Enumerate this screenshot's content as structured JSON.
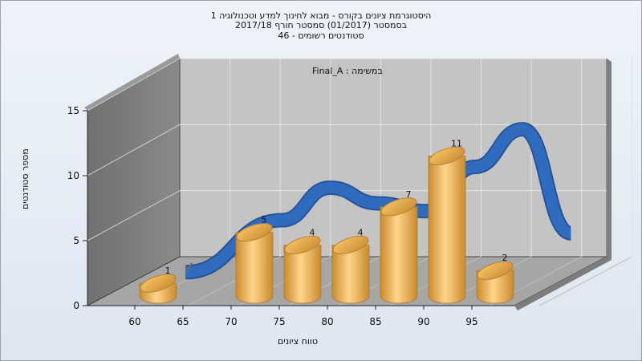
{
  "title": {
    "line1": "היסטוגרמת ציונים בקורס - מבוא לחינוך למדע וטכנולוגיה 1",
    "line2": "בסמסטר  (01/2017)  סמסטר חורף 2017/18",
    "line3": "סטודנטים רשומים - 46"
  },
  "annotation": "במשימה : Final_A",
  "colors": {
    "bar": "#f2b85a",
    "bar_dark": "#c98a2e",
    "curve": "#2f6bbf",
    "back_wall": "#c4c4c4",
    "side_wall": "#8a8a8a",
    "floor": "#a6a6a6"
  },
  "chart_data": {
    "type": "bar",
    "categories": [
      "60",
      "65",
      "70",
      "75",
      "80",
      "85",
      "90",
      "95"
    ],
    "values": [
      1,
      0,
      5,
      4,
      4,
      7,
      11,
      2
    ],
    "data_labels": [
      "1",
      "",
      "5",
      "4",
      "4",
      "7",
      "11",
      "2"
    ],
    "x_ticks": [
      "60",
      "65",
      "70",
      "75",
      "80",
      "85",
      "90",
      "95"
    ],
    "y_ticks": [
      "0",
      "5",
      "10",
      "15"
    ],
    "ylim": [
      0,
      15
    ],
    "xlabel": "טווח ציונים",
    "ylabel": "מספר סטודנטים",
    "grid": true,
    "three_d": true,
    "series": [
      {
        "type": "bar",
        "values": [
          1,
          0,
          5,
          4,
          4,
          7,
          11,
          2
        ]
      },
      {
        "type": "line",
        "x": [
          60,
          70,
          75,
          80,
          85,
          90,
          95,
          100
        ],
        "values": [
          0.5,
          4.5,
          7,
          5.8,
          5.2,
          8.6,
          11.5,
          3.5
        ]
      }
    ]
  }
}
